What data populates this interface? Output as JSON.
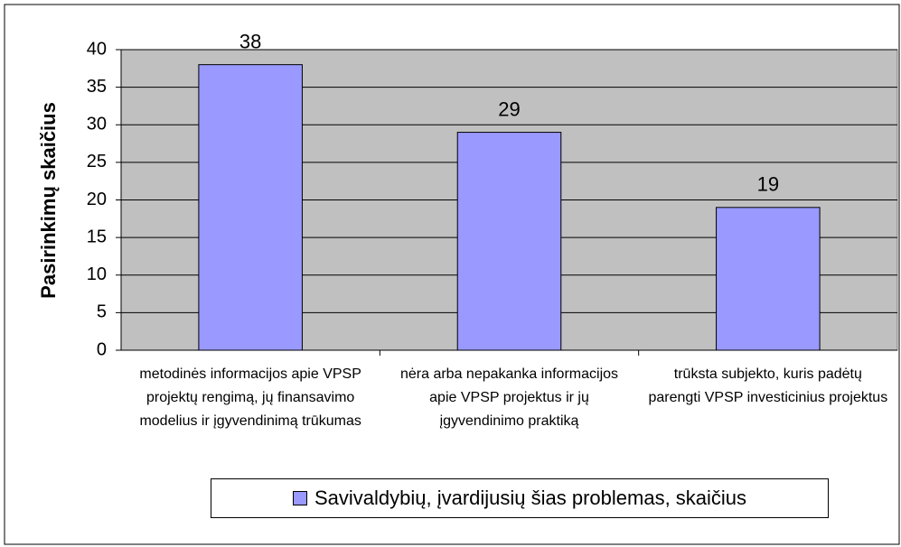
{
  "chart_data": {
    "type": "bar",
    "y_label": "Pasirinkimų skaičius",
    "categories": [
      "metodinės informacijos apie VPSP projektų rengimą, jų finansavimo modelius ir įgyvendinimą trūkumas",
      "nėra arba nepakanka informacijos apie VPSP projektus ir jų įgyvendinimo praktiką",
      "trūksta subjekto, kuris padėtų parengti VPSP investicinius projektus"
    ],
    "series": [
      {
        "name": "Savivaldybių, įvardijusių šias problemas, skaičius",
        "color": "#9999ff",
        "values": [
          38,
          29,
          19
        ]
      }
    ],
    "ylim": [
      0,
      40
    ],
    "yticks": [
      0,
      5,
      10,
      15,
      20,
      25,
      30,
      35,
      40
    ],
    "grid": true,
    "legend": "bottom"
  }
}
